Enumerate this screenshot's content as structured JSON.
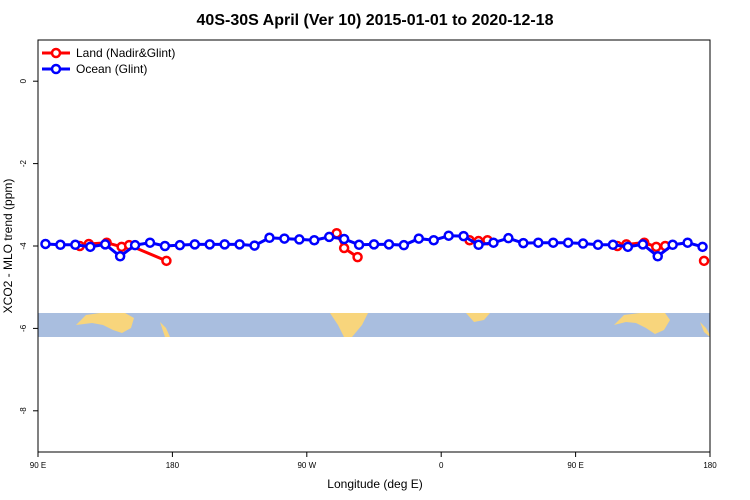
{
  "chart_data": {
    "type": "line",
    "title": "40S-30S April (Ver 10)   2015-01-01 to 2020-12-18",
    "x_label": "Longitude (deg E)",
    "y_label": "XCO2 - MLO trend (ppm)",
    "xlim": [
      90,
      540
    ],
    "xticks": [
      {
        "value": 90,
        "label": "90 E"
      },
      180,
      {
        "value": 270,
        "label": "90 W"
      },
      {
        "value": 360,
        "label": "0"
      },
      {
        "value": 450,
        "label": "90 E"
      },
      180
    ],
    "ylim": [
      -9,
      1
    ],
    "yticks": [
      0,
      -2,
      -4,
      -6,
      -8
    ],
    "legend": "top-left",
    "series": [
      {
        "name": "Land (Nadir&Glint)",
        "color": "#ff0000",
        "x": [
          118,
          124,
          136,
          146,
          151,
          176,
          null,
          290,
          295,
          304,
          null,
          379,
          385,
          391,
          null,
          478,
          484,
          496,
          504,
          510,
          null,
          536
        ],
        "values": [
          -4.0,
          -3.95,
          -3.92,
          -4.02,
          -3.98,
          -4.36,
          null,
          -3.69,
          -4.05,
          -4.27,
          null,
          -3.86,
          -3.88,
          -3.86,
          null,
          -4.0,
          -3.96,
          -3.92,
          -4.02,
          -4.0,
          null,
          -4.36
        ]
      },
      {
        "name": "Ocean (Glint)",
        "color": "#0000ff",
        "x": [
          95,
          105,
          115,
          125,
          135,
          145,
          155,
          165,
          175,
          185,
          195,
          205,
          215,
          225,
          235,
          245,
          255,
          265,
          275,
          285,
          295,
          305,
          315,
          325,
          335,
          345,
          355,
          365,
          375,
          385,
          395,
          405,
          415,
          425,
          435,
          445,
          455,
          465,
          475,
          485,
          495,
          505,
          515,
          525,
          535
        ],
        "values": [
          -3.95,
          -3.97,
          -3.97,
          -4.02,
          -3.96,
          -4.25,
          -3.98,
          -3.92,
          -4.0,
          -3.98,
          -3.96,
          -3.96,
          -3.96,
          -3.96,
          -3.99,
          -3.8,
          -3.82,
          -3.84,
          -3.86,
          -3.78,
          -3.83,
          -3.97,
          -3.96,
          -3.96,
          -3.98,
          -3.82,
          -3.86,
          -3.75,
          -3.76,
          -3.97,
          -3.92,
          -3.81,
          -3.93,
          -3.92,
          -3.92,
          -3.92,
          -3.94,
          -3.97,
          -3.97,
          -4.02,
          -3.96,
          -4.25,
          -3.97,
          -3.92,
          -4.02
        ]
      }
    ]
  }
}
